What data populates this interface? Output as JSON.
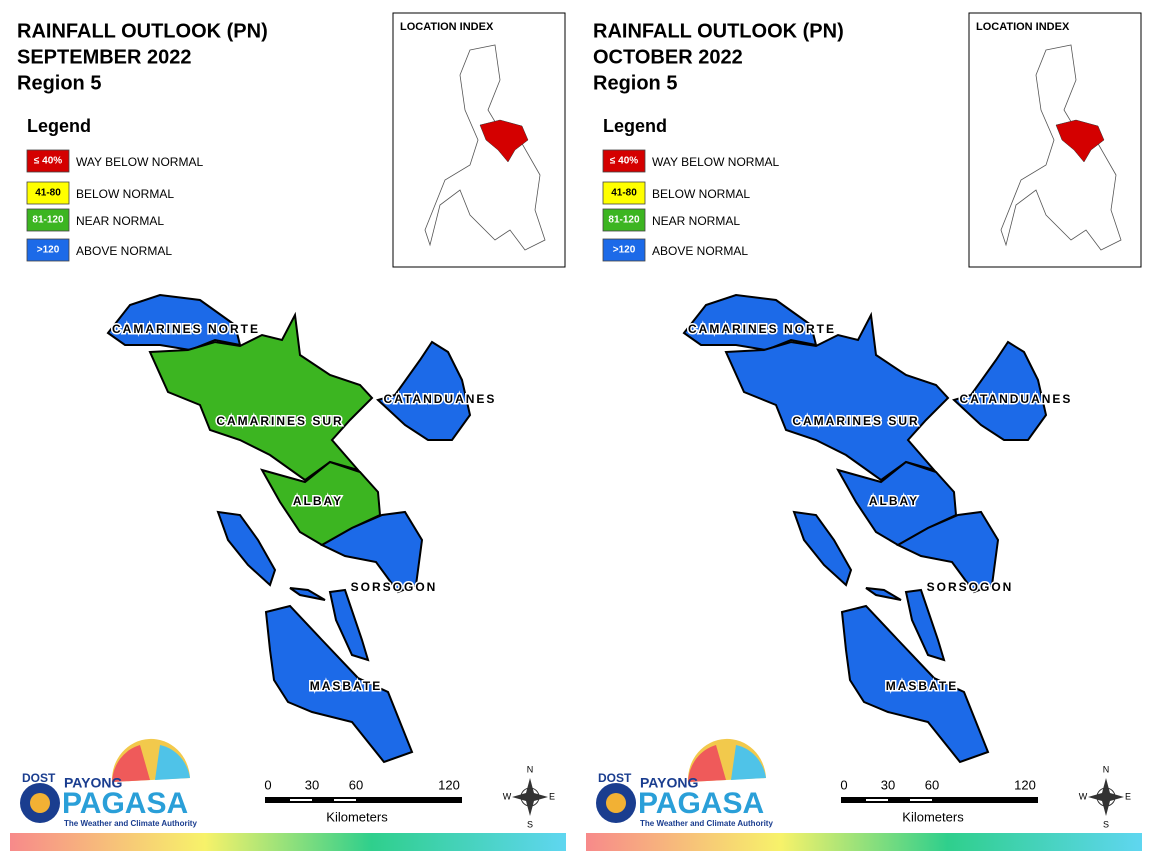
{
  "panels": [
    {
      "title": [
        "RAINFALL OUTLOOK (PN)",
        "SEPTEMBER 2022",
        "Region 5"
      ],
      "legend": {
        "title": "Legend",
        "items": [
          {
            "range": "≤ 40%",
            "label": "WAY BELOW NORMAL",
            "color": "#d40000"
          },
          {
            "range": "41-80",
            "label": "BELOW NORMAL",
            "color": "#ffff00"
          },
          {
            "range": "81-120",
            "label": "NEAR NORMAL",
            "color": "#3cb521"
          },
          {
            "range": ">120",
            "label": "ABOVE NORMAL",
            "color": "#1c6ae8"
          }
        ]
      },
      "location_index": "LOCATION INDEX",
      "provinces": [
        {
          "name": "CAMARINES NORTE",
          "color": "#1c6ae8"
        },
        {
          "name": "CATANDUANES",
          "color": "#1c6ae8"
        },
        {
          "name": "CAMARINES SUR",
          "color": "#3cb521"
        },
        {
          "name": "ALBAY",
          "color": "#3cb521"
        },
        {
          "name": "SORSOGON",
          "color": "#1c6ae8"
        },
        {
          "name": "MASBATE",
          "color": "#1c6ae8"
        }
      ],
      "scale": {
        "ticks": [
          0,
          30,
          60,
          120
        ],
        "unit": "Kilometers"
      },
      "compass": [
        "N",
        "E",
        "S",
        "W"
      ],
      "logo": {
        "dost": "DOST",
        "payong": "PAYONG",
        "pagasa": "PAGASA",
        "tagline": "The Weather and Climate Authority"
      }
    },
    {
      "title": [
        "RAINFALL OUTLOOK (PN)",
        "OCTOBER 2022",
        "Region 5"
      ],
      "legend": {
        "title": "Legend",
        "items": [
          {
            "range": "≤ 40%",
            "label": "WAY BELOW NORMAL",
            "color": "#d40000"
          },
          {
            "range": "41-80",
            "label": "BELOW NORMAL",
            "color": "#ffff00"
          },
          {
            "range": "81-120",
            "label": "NEAR NORMAL",
            "color": "#3cb521"
          },
          {
            "range": ">120",
            "label": "ABOVE NORMAL",
            "color": "#1c6ae8"
          }
        ]
      },
      "location_index": "LOCATION INDEX",
      "provinces": [
        {
          "name": "CAMARINES NORTE",
          "color": "#1c6ae8"
        },
        {
          "name": "CATANDUANES",
          "color": "#1c6ae8"
        },
        {
          "name": "CAMARINES SUR",
          "color": "#1c6ae8"
        },
        {
          "name": "ALBAY",
          "color": "#1c6ae8"
        },
        {
          "name": "SORSOGON",
          "color": "#1c6ae8"
        },
        {
          "name": "MASBATE",
          "color": "#1c6ae8"
        }
      ],
      "scale": {
        "ticks": [
          0,
          30,
          60,
          120
        ],
        "unit": "Kilometers"
      },
      "compass": [
        "N",
        "E",
        "S",
        "W"
      ],
      "logo": {
        "dost": "DOST",
        "payong": "PAYONG",
        "pagasa": "PAGASA",
        "tagline": "The Weather and Climate Authority"
      }
    }
  ]
}
